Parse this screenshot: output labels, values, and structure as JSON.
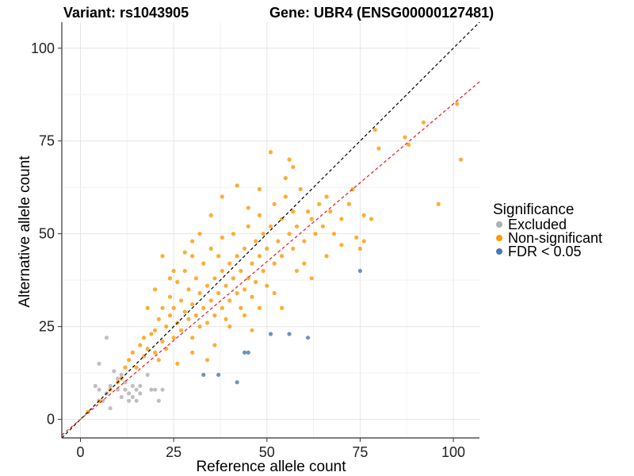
{
  "chart_data": {
    "type": "scatter",
    "title_left": "Variant: rs1043905",
    "title_right": "Gene: UBR4 (ENSG00000127481)",
    "xlabel": "Reference allele count",
    "ylabel": "Alternative allele count",
    "xlim": [
      -5,
      107
    ],
    "ylim": [
      -5,
      107
    ],
    "xticks": [
      0,
      25,
      50,
      75,
      100
    ],
    "yticks": [
      0,
      25,
      50,
      75,
      100
    ],
    "grid": true,
    "reference_lines": [
      {
        "name": "identity",
        "slope": 1,
        "intercept": 0,
        "color": "#000000",
        "style": "dashed"
      },
      {
        "name": "fit",
        "slope": 0.85,
        "intercept": 0,
        "color": "#e41a1c",
        "style": "dashed"
      }
    ],
    "legend": {
      "title": "Significance",
      "position": "right",
      "entries": [
        {
          "label": "Excluded",
          "color": "#b0b0b0"
        },
        {
          "label": "Non-significant",
          "color": "#ff9900"
        },
        {
          "label": "FDR < 0.05",
          "color": "#4a77ae"
        }
      ]
    },
    "series": [
      {
        "name": "Excluded",
        "color": "#b0b0b0",
        "points": [
          [
            4,
            9
          ],
          [
            5,
            8
          ],
          [
            5,
            15
          ],
          [
            6,
            5
          ],
          [
            7,
            7
          ],
          [
            8,
            3
          ],
          [
            8,
            9
          ],
          [
            7,
            22
          ],
          [
            9,
            13
          ],
          [
            10,
            8
          ],
          [
            10,
            11
          ],
          [
            11,
            12
          ],
          [
            11,
            6
          ],
          [
            12,
            8
          ],
          [
            12,
            10
          ],
          [
            13,
            7
          ],
          [
            13,
            5
          ],
          [
            14,
            9
          ],
          [
            14,
            6
          ],
          [
            15,
            8
          ],
          [
            15,
            5
          ],
          [
            16,
            7
          ],
          [
            16,
            9
          ],
          [
            18,
            12
          ],
          [
            19,
            8
          ],
          [
            20,
            8
          ],
          [
            21,
            5
          ],
          [
            22,
            8
          ]
        ]
      },
      {
        "name": "FDR < 0.05",
        "color": "#4a77ae",
        "points": [
          [
            33,
            12
          ],
          [
            37,
            12
          ],
          [
            42,
            10
          ],
          [
            44,
            18
          ],
          [
            45,
            18
          ],
          [
            51,
            23
          ],
          [
            56,
            23
          ],
          [
            61,
            22
          ],
          [
            75,
            40
          ]
        ]
      },
      {
        "name": "Non-significant",
        "color": "#ff9900",
        "points": [
          [
            2,
            2
          ],
          [
            5,
            5
          ],
          [
            8,
            8
          ],
          [
            10,
            10
          ],
          [
            11,
            11
          ],
          [
            12,
            14
          ],
          [
            13,
            16
          ],
          [
            14,
            18
          ],
          [
            15,
            14
          ],
          [
            16,
            20
          ],
          [
            17,
            17
          ],
          [
            17,
            22
          ],
          [
            18,
            19
          ],
          [
            19,
            23
          ],
          [
            20,
            18
          ],
          [
            20,
            24
          ],
          [
            21,
            16
          ],
          [
            21,
            27
          ],
          [
            22,
            21
          ],
          [
            22,
            30
          ],
          [
            23,
            25
          ],
          [
            23,
            19
          ],
          [
            24,
            28
          ],
          [
            24,
            33
          ],
          [
            25,
            22
          ],
          [
            25,
            30
          ],
          [
            26,
            26
          ],
          [
            26,
            37
          ],
          [
            27,
            24
          ],
          [
            27,
            32
          ],
          [
            28,
            29
          ],
          [
            28,
            40
          ],
          [
            29,
            27
          ],
          [
            29,
            35
          ],
          [
            30,
            22
          ],
          [
            30,
            31
          ],
          [
            30,
            44
          ],
          [
            31,
            28
          ],
          [
            31,
            38
          ],
          [
            32,
            34
          ],
          [
            32,
            25
          ],
          [
            33,
            30
          ],
          [
            33,
            42
          ],
          [
            34,
            36
          ],
          [
            34,
            26
          ],
          [
            35,
            32
          ],
          [
            35,
            46
          ],
          [
            36,
            38
          ],
          [
            36,
            28
          ],
          [
            37,
            34
          ],
          [
            37,
            44
          ],
          [
            38,
            30
          ],
          [
            38,
            40
          ],
          [
            38,
            49
          ],
          [
            39,
            36
          ],
          [
            39,
            27
          ],
          [
            40,
            32
          ],
          [
            40,
            42
          ],
          [
            41,
            38
          ],
          [
            41,
            50
          ],
          [
            42,
            34
          ],
          [
            42,
            44
          ],
          [
            43,
            30
          ],
          [
            43,
            40
          ],
          [
            44,
            46
          ],
          [
            44,
            35
          ],
          [
            45,
            38
          ],
          [
            45,
            52
          ],
          [
            46,
            42
          ],
          [
            46,
            33
          ],
          [
            47,
            48
          ],
          [
            47,
            37
          ],
          [
            48,
            44
          ],
          [
            48,
            55
          ],
          [
            49,
            40
          ],
          [
            49,
            50
          ],
          [
            50,
            46
          ],
          [
            50,
            36
          ],
          [
            51,
            52
          ],
          [
            52,
            42
          ],
          [
            52,
            58
          ],
          [
            53,
            48
          ],
          [
            54,
            54
          ],
          [
            54,
            44
          ],
          [
            55,
            60
          ],
          [
            56,
            50
          ],
          [
            57,
            46
          ],
          [
            57,
            56
          ],
          [
            58,
            52
          ],
          [
            59,
            62
          ],
          [
            60,
            48
          ],
          [
            61,
            56
          ],
          [
            62,
            54
          ],
          [
            63,
            50
          ],
          [
            64,
            58
          ],
          [
            65,
            52
          ],
          [
            66,
            60
          ],
          [
            67,
            56
          ],
          [
            68,
            50
          ],
          [
            70,
            54
          ],
          [
            72,
            58
          ],
          [
            74,
            49
          ],
          [
            75,
            46
          ],
          [
            76,
            48
          ],
          [
            79,
            78
          ],
          [
            80,
            73
          ],
          [
            87,
            76
          ],
          [
            88,
            74
          ],
          [
            92,
            80
          ],
          [
            96,
            58
          ],
          [
            101,
            85
          ],
          [
            102,
            70
          ],
          [
            51,
            72
          ],
          [
            56,
            70
          ],
          [
            57,
            68
          ],
          [
            38,
            60
          ],
          [
            42,
            63
          ],
          [
            45,
            57
          ],
          [
            55,
            65
          ],
          [
            48,
            62
          ],
          [
            35,
            55
          ],
          [
            32,
            50
          ],
          [
            30,
            48
          ],
          [
            25,
            40
          ],
          [
            24,
            38
          ],
          [
            20,
            35
          ],
          [
            18,
            30
          ],
          [
            22,
            44
          ],
          [
            28,
            45
          ],
          [
            40,
            25
          ],
          [
            44,
            28
          ],
          [
            48,
            30
          ],
          [
            52,
            34
          ],
          [
            58,
            40
          ],
          [
            60,
            42
          ],
          [
            36,
            20
          ],
          [
            30,
            18
          ],
          [
            26,
            15
          ],
          [
            34,
            16
          ],
          [
            46,
            24
          ],
          [
            54,
            30
          ],
          [
            62,
            38
          ],
          [
            66,
            44
          ],
          [
            70,
            47
          ],
          [
            73,
            62
          ],
          [
            76,
            55
          ],
          [
            78,
            54
          ]
        ]
      }
    ]
  }
}
